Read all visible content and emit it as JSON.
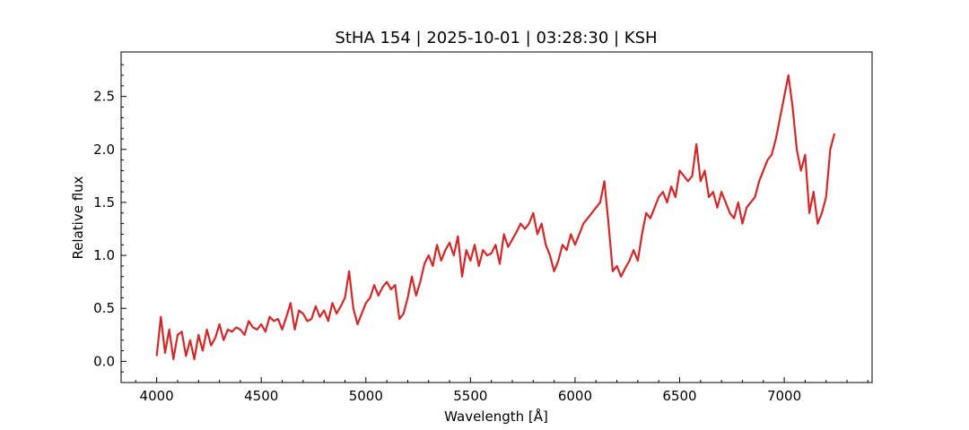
{
  "chart_data": {
    "type": "line",
    "title": "StHA 154 | 2025-10-01 | 03:28:30 | KSH",
    "xlabel": "Wavelength [Å]",
    "ylabel": "Relative flux",
    "xlim": [
      3830,
      7420
    ],
    "ylim": [
      -0.2,
      2.92
    ],
    "xticks": [
      4000,
      4500,
      5000,
      5500,
      6000,
      6500,
      7000
    ],
    "xtick_labels": [
      "4000",
      "4500",
      "5000",
      "5500",
      "6000",
      "6500",
      "7000"
    ],
    "yticks": [
      0.0,
      0.5,
      1.0,
      1.5,
      2.0,
      2.5
    ],
    "ytick_labels": [
      "0.0",
      "0.5",
      "1.0",
      "1.5",
      "2.0",
      "2.5"
    ],
    "grid": false,
    "series": [
      {
        "color": "#d62728",
        "x": [
          4000,
          4020,
          4040,
          4060,
          4080,
          4100,
          4120,
          4140,
          4160,
          4180,
          4200,
          4220,
          4240,
          4260,
          4280,
          4300,
          4320,
          4340,
          4360,
          4380,
          4400,
          4420,
          4440,
          4460,
          4480,
          4500,
          4520,
          4540,
          4560,
          4580,
          4600,
          4620,
          4640,
          4660,
          4680,
          4700,
          4720,
          4740,
          4760,
          4780,
          4800,
          4820,
          4840,
          4860,
          4880,
          4900,
          4920,
          4940,
          4960,
          4980,
          5000,
          5020,
          5040,
          5060,
          5080,
          5100,
          5120,
          5140,
          5160,
          5180,
          5200,
          5220,
          5240,
          5260,
          5280,
          5300,
          5320,
          5340,
          5360,
          5380,
          5400,
          5420,
          5440,
          5460,
          5480,
          5500,
          5520,
          5540,
          5560,
          5580,
          5600,
          5620,
          5640,
          5660,
          5680,
          5700,
          5720,
          5740,
          5760,
          5780,
          5800,
          5820,
          5840,
          5860,
          5880,
          5900,
          5920,
          5940,
          5960,
          5980,
          6000,
          6020,
          6040,
          6060,
          6080,
          6100,
          6120,
          6140,
          6160,
          6180,
          6200,
          6220,
          6240,
          6260,
          6280,
          6300,
          6320,
          6340,
          6360,
          6380,
          6400,
          6420,
          6440,
          6460,
          6480,
          6500,
          6520,
          6540,
          6560,
          6580,
          6600,
          6620,
          6640,
          6660,
          6680,
          6700,
          6720,
          6740,
          6760,
          6780,
          6800,
          6820,
          6840,
          6860,
          6880,
          6900,
          6920,
          6940,
          6960,
          6980,
          7000,
          7020,
          7040,
          7060,
          7080,
          7100,
          7120,
          7140,
          7160,
          7180,
          7200,
          7220,
          7240
        ],
        "y": [
          0.05,
          0.42,
          0.08,
          0.3,
          0.02,
          0.25,
          0.28,
          0.05,
          0.2,
          0.02,
          0.25,
          0.1,
          0.3,
          0.15,
          0.22,
          0.35,
          0.2,
          0.3,
          0.28,
          0.32,
          0.3,
          0.25,
          0.38,
          0.32,
          0.3,
          0.35,
          0.28,
          0.42,
          0.38,
          0.4,
          0.3,
          0.42,
          0.55,
          0.3,
          0.48,
          0.45,
          0.38,
          0.4,
          0.52,
          0.42,
          0.48,
          0.38,
          0.55,
          0.45,
          0.52,
          0.6,
          0.85,
          0.5,
          0.35,
          0.45,
          0.55,
          0.6,
          0.72,
          0.62,
          0.7,
          0.75,
          0.68,
          0.72,
          0.4,
          0.45,
          0.6,
          0.8,
          0.62,
          0.75,
          0.92,
          1.0,
          0.9,
          1.1,
          0.95,
          1.05,
          1.12,
          1.0,
          1.18,
          0.8,
          1.05,
          0.95,
          1.1,
          0.9,
          1.05,
          1.0,
          1.02,
          1.1,
          0.92,
          1.2,
          1.08,
          1.15,
          1.22,
          1.3,
          1.25,
          1.3,
          1.4,
          1.2,
          1.3,
          1.1,
          1.0,
          0.85,
          0.95,
          1.1,
          1.05,
          1.2,
          1.1,
          1.2,
          1.3,
          1.35,
          1.4,
          1.45,
          1.5,
          1.7,
          1.3,
          0.85,
          0.9,
          0.8,
          0.88,
          0.95,
          1.05,
          0.95,
          1.2,
          1.4,
          1.35,
          1.45,
          1.55,
          1.6,
          1.5,
          1.65,
          1.55,
          1.8,
          1.75,
          1.7,
          1.75,
          2.05,
          1.7,
          1.8,
          1.55,
          1.6,
          1.45,
          1.6,
          1.5,
          1.4,
          1.35,
          1.5,
          1.3,
          1.45,
          1.5,
          1.55,
          1.7,
          1.8,
          1.9,
          1.95,
          2.1,
          2.3,
          2.5,
          2.7,
          2.4,
          2.0,
          1.8,
          1.95,
          1.4,
          1.6,
          1.3,
          1.4,
          1.55,
          2.0,
          2.15
        ],
        "lw": 2.2
      }
    ]
  }
}
